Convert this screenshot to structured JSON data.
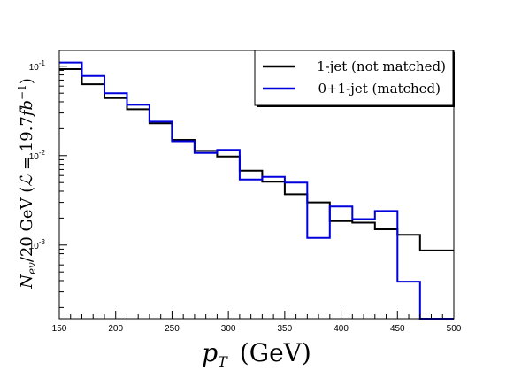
{
  "chart_data": {
    "type": "line",
    "style": "step-histogram",
    "xlabel_main": "p",
    "xlabel_sub": "T",
    "xlabel_unit": "(GeV)",
    "ylabel_lead": "N",
    "ylabel_lead_sub": "ev",
    "ylabel_rest": "/20 GeV (",
    "ylabel_lumi_symbol": "ℒ",
    "ylabel_lumi_value": " = 19.7",
    "ylabel_lumi_unit": "fb",
    "ylabel_lumi_exp": "−1",
    "ylabel_close": ")",
    "xlim": [
      150,
      500
    ],
    "ylim": [
      0.00015,
      0.15
    ],
    "yscale": "log",
    "grid": false,
    "legend_position": "top-right",
    "x_ticks": [
      "150",
      "200",
      "250",
      "300",
      "350",
      "400",
      "450",
      "500"
    ],
    "y_tick_labels": [
      {
        "value": 0.1,
        "base": "10",
        "exp": "-1"
      },
      {
        "value": 0.01,
        "base": "10",
        "exp": "-2"
      },
      {
        "value": 0.001,
        "base": "10",
        "exp": "-3"
      }
    ],
    "bin_edges": [
      150,
      170,
      190,
      210,
      230,
      250,
      270,
      290,
      310,
      330,
      350,
      370,
      390,
      410,
      430,
      450,
      470,
      490,
      500
    ],
    "series": [
      {
        "name": "1-jet (not matched)",
        "color": "#000000",
        "values": [
          0.093,
          0.063,
          0.044,
          0.033,
          0.023,
          0.015,
          0.0113,
          0.0098,
          0.0068,
          0.0051,
          0.0037,
          0.003,
          0.00185,
          0.00178,
          0.0015,
          0.0013,
          0.00087,
          0.00087
        ]
      },
      {
        "name": "0+1-jet (matched)",
        "color": "#0000dd",
        "values": [
          0.11,
          0.078,
          0.05,
          0.037,
          0.024,
          0.0145,
          0.0107,
          0.0116,
          0.0054,
          0.0058,
          0.005,
          0.0012,
          0.0027,
          0.00195,
          0.0024,
          0.00039,
          0.00012,
          0.00012
        ]
      }
    ]
  }
}
